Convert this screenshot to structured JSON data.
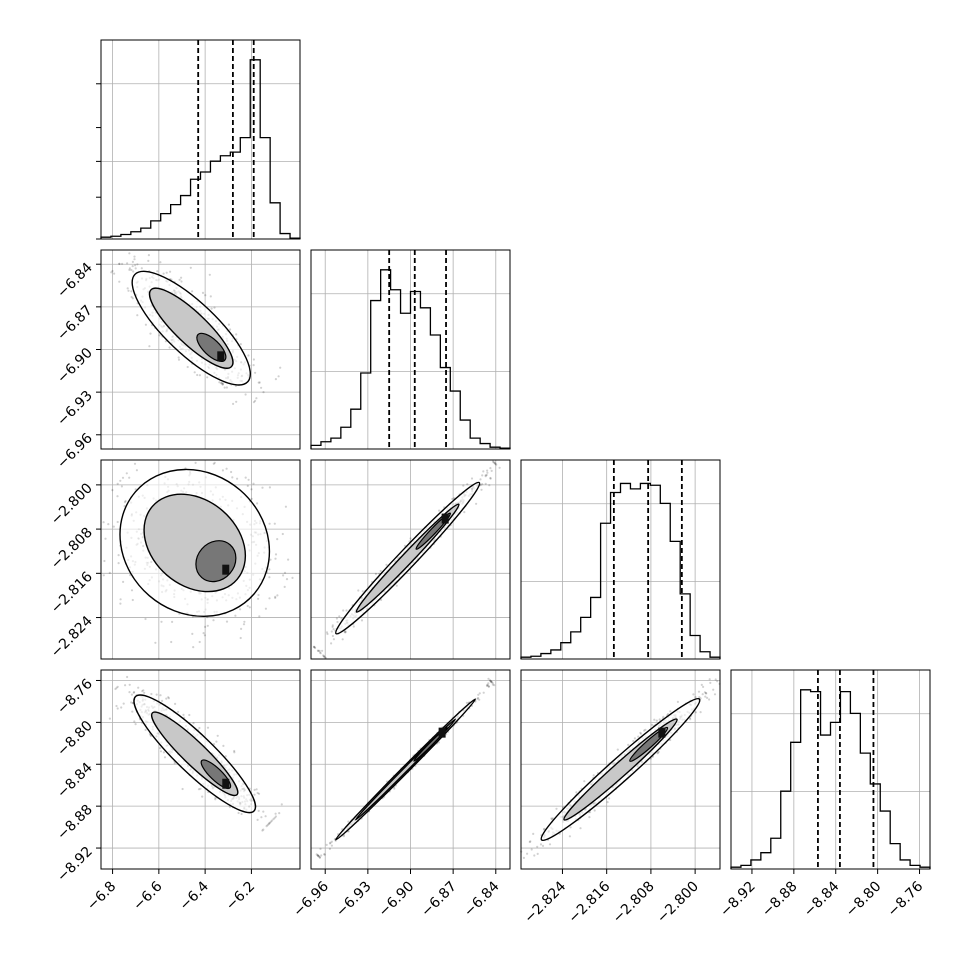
{
  "chart_data": {
    "type": "corner",
    "parameters": 4,
    "grid": true,
    "params": [
      {
        "range": [
          -6.85,
          -5.99
        ],
        "ticks": [
          -6.8,
          -6.6,
          -6.4,
          -6.2
        ],
        "tick_labels": [
          "−6.8",
          "−6.6",
          "−6.4",
          "−6.2"
        ],
        "quantiles": [
          -6.43,
          -6.28,
          -6.19
        ],
        "hist": [
          1,
          1.5,
          2.5,
          4,
          6,
          10,
          14,
          19,
          24,
          33,
          37,
          43,
          46,
          48,
          56,
          99,
          56,
          20,
          3,
          0.5
        ]
      },
      {
        "range": [
          -6.97,
          -6.83
        ],
        "ticks": [
          -6.96,
          -6.93,
          -6.9,
          -6.87,
          -6.84
        ],
        "tick_labels": [
          "−6.96",
          "−6.93",
          "−6.90",
          "−6.87",
          "−6.84"
        ],
        "quantiles": [
          -6.915,
          -6.897,
          -6.875
        ],
        "hist": [
          2,
          4,
          6,
          12,
          22,
          42,
          82,
          99,
          88,
          75,
          87,
          78,
          63,
          45,
          32,
          16,
          6,
          3,
          1,
          0.5
        ]
      },
      {
        "range": [
          -2.8315,
          -2.7955
        ],
        "ticks": [
          -2.824,
          -2.816,
          -2.808,
          -2.8
        ],
        "tick_labels": [
          "−2.824",
          "−2.816",
          "−2.808",
          "−2.800"
        ],
        "quantiles": [
          -2.8147,
          -2.8085,
          -2.8024
        ],
        "hist": [
          1,
          1.5,
          3,
          5,
          9,
          15,
          23,
          34,
          75,
          92,
          97,
          94,
          97,
          96,
          86,
          65,
          36,
          13,
          4,
          1
        ]
      },
      {
        "range": [
          -8.94,
          -8.75
        ],
        "ticks": [
          -8.92,
          -8.88,
          -8.84,
          -8.8,
          -8.76
        ],
        "tick_labels": [
          "−8.92",
          "−8.88",
          "−8.84",
          "−8.80",
          "−8.76"
        ],
        "quantiles": [
          -8.857,
          -8.836,
          -8.804
        ],
        "hist": [
          1,
          2,
          5,
          9,
          17,
          43,
          70,
          99,
          98,
          74,
          81,
          98,
          86,
          64,
          47,
          32,
          14,
          5,
          2,
          1
        ]
      }
    ],
    "ridge": {
      "1_0": {
        "a": [
          -6.75,
          -6.84
        ],
        "b": [
          -6.17,
          -6.93
        ],
        "w": 0.02
      },
      "2_0": {
        "a": [
          -6.75,
          -2.7995
        ],
        "b": [
          -6.14,
          -2.8215
        ],
        "w": 0.014
      },
      "3_0": {
        "a": [
          -6.75,
          -8.765
        ],
        "b": [
          -6.14,
          -8.895
        ],
        "w": 0.02
      },
      "2_1": {
        "a": [
          -6.962,
          -2.8295
        ],
        "b": [
          -6.842,
          -2.797
        ],
        "w": 0.0018
      },
      "3_1": {
        "a": [
          -6.962,
          -8.925
        ],
        "b": [
          -6.845,
          -8.765
        ],
        "w": 0.0035
      },
      "3_2": {
        "a": [
          -2.8305,
          -8.925
        ],
        "b": [
          -2.7965,
          -8.765
        ],
        "w": 0.012
      }
    }
  }
}
